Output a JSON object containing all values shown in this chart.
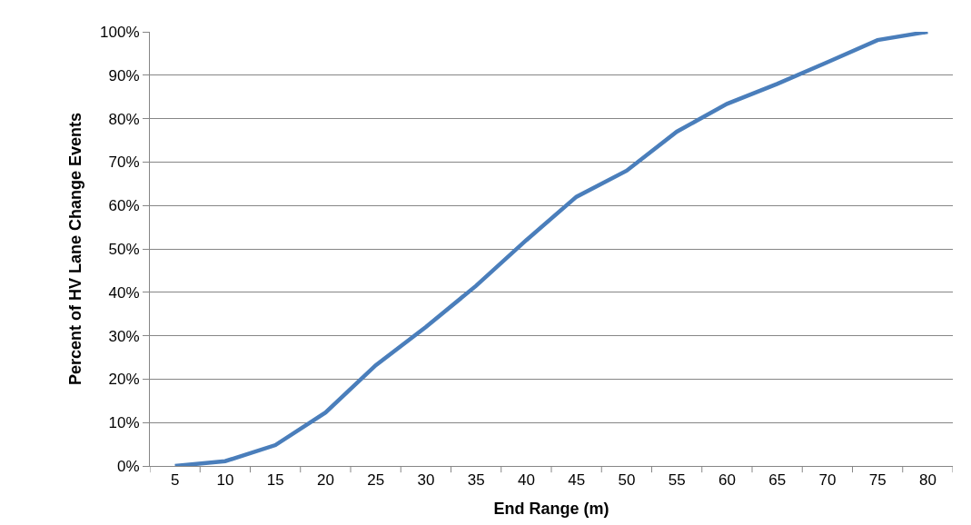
{
  "chart_data": {
    "type": "line",
    "xlabel": "End Range (m)",
    "ylabel": "Percent of HV Lane Change Events",
    "categories": [
      "5",
      "10",
      "15",
      "20",
      "25",
      "30",
      "35",
      "40",
      "45",
      "50",
      "55",
      "60",
      "65",
      "70",
      "75",
      "80"
    ],
    "series": [
      {
        "color": "#4a7ebb",
        "values": [
          0,
          1.1,
          4.8,
          12.3,
          23.2,
          32,
          41.5,
          52,
          62,
          68,
          77,
          83.4,
          88,
          93,
          98.1,
          100
        ]
      }
    ],
    "ylim": [
      0,
      100
    ],
    "yticks": [
      {
        "value": 0,
        "label": "0%"
      },
      {
        "value": 10,
        "label": "10%"
      },
      {
        "value": 20,
        "label": "20%"
      },
      {
        "value": 30,
        "label": "30%"
      },
      {
        "value": 40,
        "label": "40%"
      },
      {
        "value": 50,
        "label": "50%"
      },
      {
        "value": 60,
        "label": "60%"
      },
      {
        "value": 70,
        "label": "70%"
      },
      {
        "value": 80,
        "label": "80%"
      },
      {
        "value": 90,
        "label": "90%"
      },
      {
        "value": 100,
        "label": "100%"
      }
    ],
    "grid": "y",
    "marker": "none",
    "line_style": "solid"
  }
}
